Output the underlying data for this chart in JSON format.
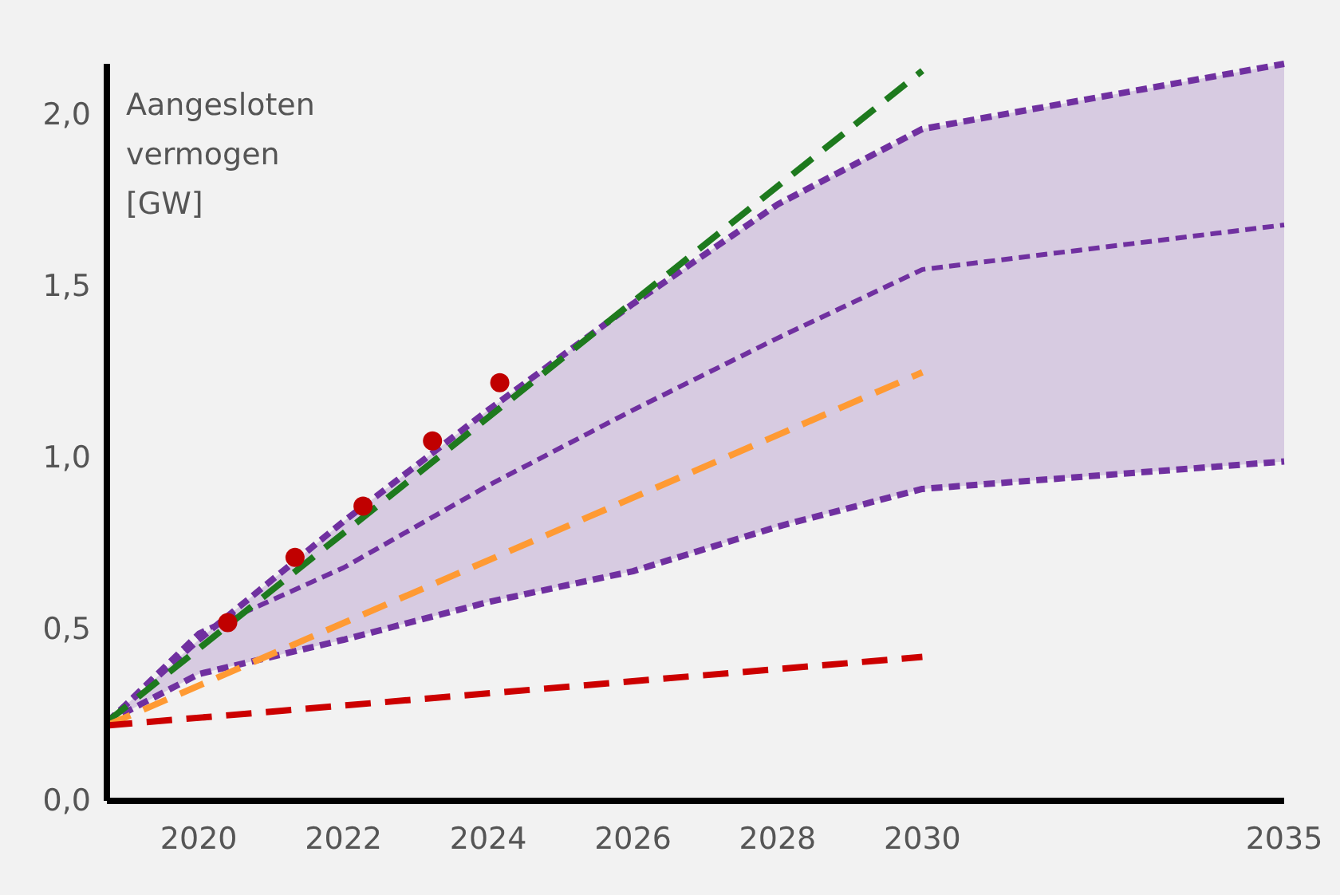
{
  "chart_data": {
    "type": "line",
    "ylabel": "Aangesloten vermogen [GW]",
    "xlim": [
      2018.73,
      2035
    ],
    "xticks": [
      2020,
      2022,
      2024,
      2026,
      2028,
      2030,
      2035
    ],
    "ylim": [
      0,
      2.15
    ],
    "yticks": [
      {
        "value": 0,
        "label": "0,0"
      },
      {
        "value": 0.5,
        "label": "0,5"
      },
      {
        "value": 1,
        "label": "1,0"
      },
      {
        "value": 1.5,
        "label": "1,5"
      },
      {
        "value": 2,
        "label": "2,0"
      }
    ],
    "grid": false,
    "series": [
      {
        "color": "#7030a0",
        "line_style": "dotted",
        "x": [
          2018.73,
          2020,
          2022,
          2024,
          2026,
          2028,
          2030,
          2035
        ],
        "values": [
          0.23,
          0.49,
          0.68,
          0.92,
          1.14,
          1.35,
          1.55,
          1.68
        ],
        "lower": [
          0.23,
          0.37,
          0.47,
          0.58,
          0.67,
          0.8,
          0.91,
          0.99
        ],
        "upper": [
          0.23,
          0.47,
          0.815,
          1.14,
          1.45,
          1.74,
          1.96,
          2.15
        ]
      },
      {
        "color": "#7030a0",
        "line_style": "dotted",
        "x": [
          2018.73,
          2020,
          2022,
          2024,
          2026,
          2028,
          2030,
          2035
        ],
        "values": [
          0.23,
          0.47,
          0.815,
          1.14,
          1.45,
          1.74,
          1.96,
          2.15
        ]
      },
      {
        "color": "#7030a0",
        "line_style": "dotted",
        "x": [
          2018.73,
          2020,
          2022,
          2024,
          2026,
          2028,
          2030,
          2035
        ],
        "values": [
          0.23,
          0.37,
          0.47,
          0.58,
          0.67,
          0.8,
          0.91,
          0.99
        ]
      },
      {
        "color": "#1e7a1e",
        "line_style": "dashed",
        "x": [
          2018.73,
          2030
        ],
        "values": [
          0.23,
          2.13
        ]
      },
      {
        "color": "#ff9a33",
        "line_style": "dashed",
        "x": [
          2018.73,
          2030
        ],
        "values": [
          0.22,
          1.25
        ]
      },
      {
        "color": "#cc0000",
        "line_style": "dashed",
        "x": [
          2018.73,
          2030
        ],
        "values": [
          0.22,
          0.42
        ]
      },
      {
        "type": "scatter",
        "color": "#c00000",
        "marker": "circle",
        "x": [
          2020.4,
          2021.33,
          2022.27,
          2023.23,
          2024.16
        ],
        "values": [
          0.52,
          0.71,
          0.86,
          1.05,
          1.22
        ]
      }
    ]
  }
}
